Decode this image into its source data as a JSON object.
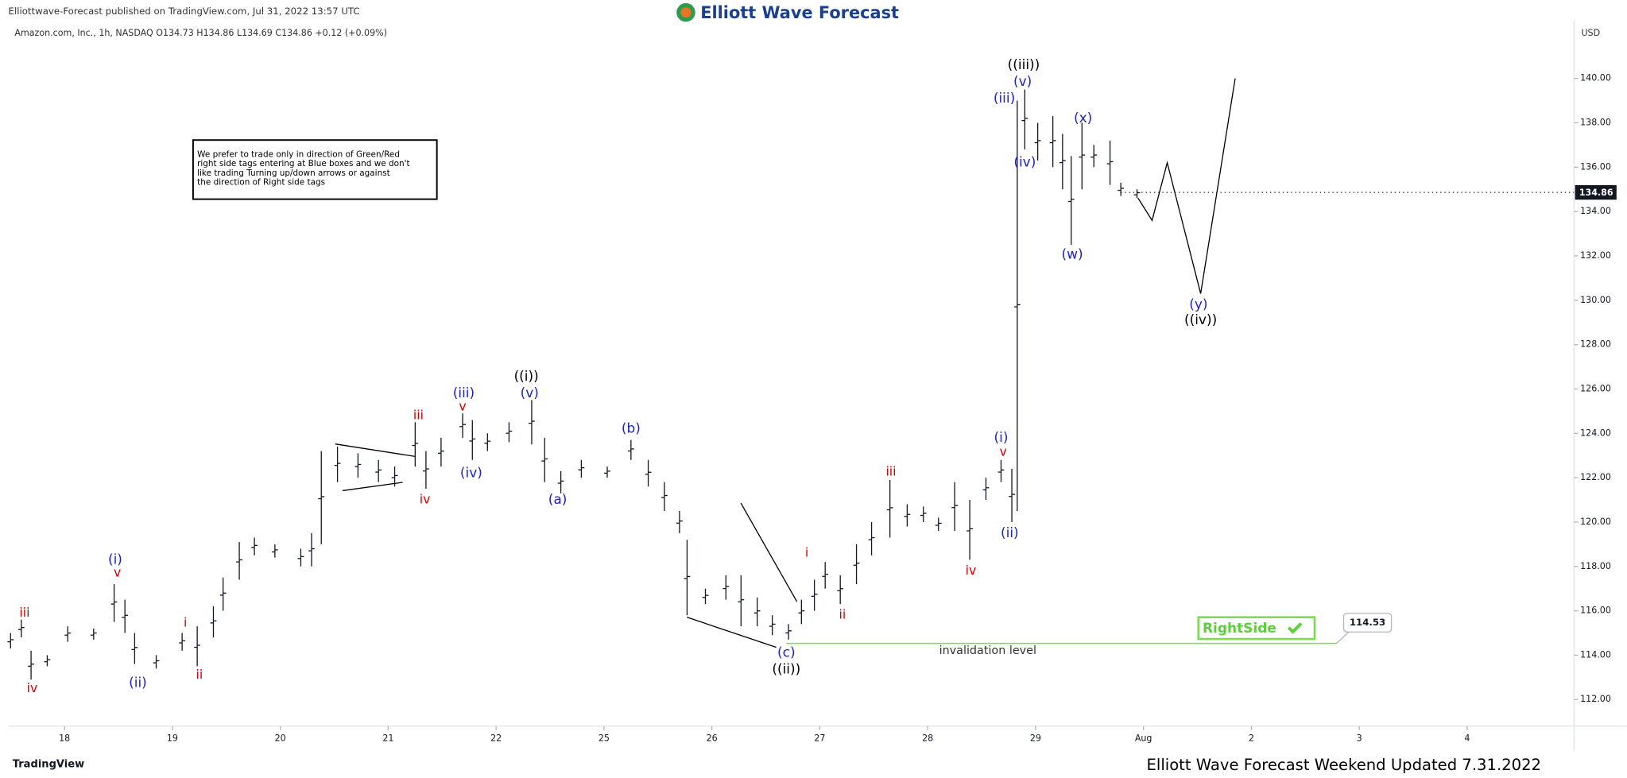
{
  "header": {
    "published": "Elliottwave-Forecast published on TradingView.com, Jul 31, 2022 13:57 UTC",
    "logo": "Elliott Wave Forecast",
    "symbol": "Amazon.com, Inc., 1h, NASDAQ  O134.73  H134.86  L134.69  C134.86  +0.12 (+0.09%)",
    "note": [
      "We prefer to trade only in direction of Green/Red",
      "right side tags entering at Blue boxes and we don't",
      "like trading Turning up/down arrows or against",
      "the direction of Right side tags"
    ]
  },
  "footer": {
    "brand": "TradingView",
    "caption": "Elliott Wave Forecast Weekend Updated 7.31.2022"
  },
  "chart_data": {
    "type": "ohlc",
    "currency": "USD",
    "xlim": [
      -0.52,
      13.99
    ],
    "xticks": [
      {
        "value": 0,
        "label": "18"
      },
      {
        "value": 1,
        "label": "19"
      },
      {
        "value": 2,
        "label": "20"
      },
      {
        "value": 3,
        "label": "21"
      },
      {
        "value": 4,
        "label": "22"
      },
      {
        "value": 5,
        "label": "25"
      },
      {
        "value": 6,
        "label": "26"
      },
      {
        "value": 7,
        "label": "27"
      },
      {
        "value": 8,
        "label": "28"
      },
      {
        "value": 9,
        "label": "29"
      },
      {
        "value": 10,
        "label": "Aug"
      },
      {
        "value": 11,
        "label": "2"
      },
      {
        "value": 12,
        "label": "3"
      },
      {
        "value": 13,
        "label": "4"
      }
    ],
    "ylim": [
      110.8,
      142.6
    ],
    "yticks": [
      {
        "value": 112,
        "label": "112.00"
      },
      {
        "value": 114,
        "label": "114.00"
      },
      {
        "value": 116,
        "label": "116.00"
      },
      {
        "value": 118,
        "label": "118.00"
      },
      {
        "value": 120,
        "label": "120.00"
      },
      {
        "value": 122,
        "label": "122.00"
      },
      {
        "value": 124,
        "label": "124.00"
      },
      {
        "value": 126,
        "label": "126.00"
      },
      {
        "value": 128,
        "label": "128.00"
      },
      {
        "value": 130,
        "label": "130.00"
      },
      {
        "value": 132,
        "label": "132.00"
      },
      {
        "value": 134,
        "label": "134.00"
      },
      {
        "value": 136,
        "label": "136.00"
      },
      {
        "value": 138,
        "label": "138.00"
      },
      {
        "value": 140,
        "label": "140.00"
      }
    ],
    "bar_color": "#131722",
    "bars": {
      "x": [
        -0.5,
        -0.4,
        -0.31,
        -0.16,
        0.03,
        0.27,
        0.46,
        0.56,
        0.65,
        0.85,
        1.09,
        1.23,
        1.38,
        1.47,
        1.62,
        1.76,
        1.95,
        2.19,
        2.29,
        2.38,
        2.53,
        2.72,
        2.91,
        3.06,
        3.25,
        3.35,
        3.49,
        3.69,
        3.78,
        3.92,
        4.12,
        4.33,
        4.45,
        4.6,
        4.79,
        5.03,
        5.25,
        5.41,
        5.56,
        5.7,
        5.77,
        5.94,
        6.13,
        6.27,
        6.42,
        6.56,
        6.71,
        6.83,
        6.95,
        7.05,
        7.19,
        7.34,
        7.48,
        7.65,
        7.81,
        7.96,
        8.1,
        8.25,
        8.39,
        8.54,
        8.68,
        8.78,
        8.83,
        8.9,
        9.02,
        9.16,
        9.25,
        9.33,
        9.43,
        9.54,
        9.69,
        9.79,
        9.94
      ],
      "high": [
        115,
        115.6,
        114.2,
        114,
        115.3,
        115.2,
        117.2,
        116.5,
        115,
        114,
        115,
        115.3,
        116.2,
        117.5,
        119.1,
        119.3,
        119,
        118.8,
        119.5,
        123.2,
        123.4,
        123.1,
        122.8,
        122.5,
        124.5,
        123.2,
        123.8,
        124.9,
        124.6,
        124,
        124.5,
        125.5,
        123.8,
        122.3,
        122.8,
        122.5,
        123.7,
        122.8,
        121.8,
        120.5,
        119.2,
        117,
        117.6,
        117.6,
        116.6,
        115.8,
        115.4,
        116.5,
        117.4,
        118.2,
        117.6,
        119,
        120,
        121.9,
        120.8,
        120.7,
        120.2,
        121.8,
        121,
        122,
        122.8,
        122.4,
        139,
        139.5,
        138,
        138.3,
        137.5,
        136.5,
        138,
        137,
        137.2,
        135.3,
        135
      ],
      "low": [
        114.3,
        114.8,
        112.9,
        113.5,
        114.6,
        114.7,
        115.5,
        115,
        113.6,
        113.4,
        114.2,
        113.5,
        114.8,
        116,
        117.4,
        118.5,
        118.4,
        118,
        118,
        119,
        121.8,
        122,
        121.8,
        121.6,
        122.5,
        121.5,
        122.5,
        123.8,
        122.8,
        123.2,
        123.6,
        123.5,
        121.8,
        121.3,
        122,
        122,
        122.8,
        121.6,
        120.5,
        119.5,
        115.8,
        116.3,
        116.5,
        115.3,
        115.3,
        114.9,
        114.7,
        115.4,
        116,
        117,
        116.3,
        117.2,
        118.5,
        119.3,
        119.8,
        120,
        119.6,
        119.6,
        118.3,
        121,
        121.8,
        120,
        120.5,
        136.8,
        136.3,
        136,
        135,
        132.5,
        135,
        136,
        135.2,
        134.7,
        134.6
      ]
    },
    "projection": {
      "x": [
        9.95,
        10.08,
        10.22,
        10.53,
        10.85
      ],
      "y": [
        134.6,
        133.6,
        136.2,
        130.3,
        140
      ]
    },
    "last_price": 134.86,
    "invalidation_level": 114.53,
    "invalidation_text": "invalidation level",
    "right_side": "RightSide",
    "labels": [
      {
        "text": "iii",
        "x": -0.37,
        "y": 115.9,
        "color": "#d50000"
      },
      {
        "text": "iv",
        "x": -0.3,
        "y": 112.5,
        "color": "#d50000"
      },
      {
        "text": "(i)",
        "x": 0.47,
        "y": 118.3,
        "color": "#1e22c8"
      },
      {
        "text": "v",
        "x": 0.49,
        "y": 117.7,
        "color": "#d50000"
      },
      {
        "text": "(ii)",
        "x": 0.68,
        "y": 112.75,
        "color": "#1e22c8"
      },
      {
        "text": "i",
        "x": 1.12,
        "y": 115.45,
        "color": "#d50000"
      },
      {
        "text": "ii",
        "x": 1.25,
        "y": 113.1,
        "color": "#d50000"
      },
      {
        "text": "iii",
        "x": 3.28,
        "y": 124.8,
        "color": "#d50000"
      },
      {
        "text": "iv",
        "x": 3.34,
        "y": 121,
        "color": "#d50000"
      },
      {
        "text": "(iii)",
        "x": 3.7,
        "y": 125.8,
        "color": "#1e22c8"
      },
      {
        "text": "v",
        "x": 3.69,
        "y": 125.2,
        "color": "#d50000"
      },
      {
        "text": "(iv)",
        "x": 3.77,
        "y": 122.2,
        "color": "#1e22c8"
      },
      {
        "text": "((i))",
        "x": 4.28,
        "y": 126.55,
        "color": "#000000"
      },
      {
        "text": "(v)",
        "x": 4.31,
        "y": 125.8,
        "color": "#1e22c8"
      },
      {
        "text": "(a)",
        "x": 4.57,
        "y": 121,
        "color": "#1e22c8"
      },
      {
        "text": "(b)",
        "x": 5.25,
        "y": 124.2,
        "color": "#1e22c8"
      },
      {
        "text": "(c)",
        "x": 6.69,
        "y": 114.1,
        "color": "#1e22c8"
      },
      {
        "text": "((ii))",
        "x": 6.69,
        "y": 113.35,
        "color": "#000000"
      },
      {
        "text": "i",
        "x": 6.88,
        "y": 118.6,
        "color": "#d50000"
      },
      {
        "text": "ii",
        "x": 7.21,
        "y": 115.8,
        "color": "#d50000"
      },
      {
        "text": "iii",
        "x": 7.66,
        "y": 122.25,
        "color": "#d50000"
      },
      {
        "text": "iv",
        "x": 8.4,
        "y": 117.8,
        "color": "#d50000"
      },
      {
        "text": "(i)",
        "x": 8.68,
        "y": 123.8,
        "color": "#1e22c8"
      },
      {
        "text": "v",
        "x": 8.7,
        "y": 123.15,
        "color": "#d50000"
      },
      {
        "text": "(ii)",
        "x": 8.76,
        "y": 119.5,
        "color": "#1e22c8"
      },
      {
        "text": "((iii))",
        "x": 8.89,
        "y": 140.6,
        "color": "#000000"
      },
      {
        "text": "(v)",
        "x": 8.88,
        "y": 139.85,
        "color": "#1e22c8"
      },
      {
        "text": "(iii)",
        "x": 8.71,
        "y": 139.1,
        "color": "#1e22c8"
      },
      {
        "text": "(iv)",
        "x": 8.9,
        "y": 136.2,
        "color": "#1e22c8"
      },
      {
        "text": "(x)",
        "x": 9.44,
        "y": 138.2,
        "color": "#1e22c8"
      },
      {
        "text": "(w)",
        "x": 9.34,
        "y": 132.05,
        "color": "#1e22c8"
      },
      {
        "text": "(y)",
        "x": 10.51,
        "y": 129.8,
        "color": "#1e22c8"
      },
      {
        "text": "((iv))",
        "x": 10.53,
        "y": 129.1,
        "color": "#000000"
      }
    ]
  }
}
